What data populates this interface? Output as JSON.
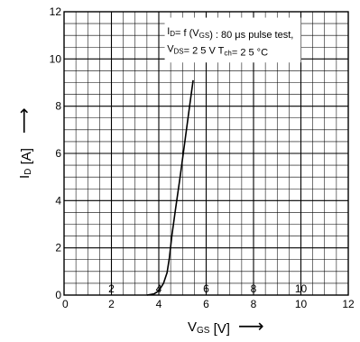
{
  "chart_data": {
    "type": "line",
    "title": "",
    "xlabel": {
      "main": "V",
      "sub": "GS",
      "unit": " [V]",
      "arrow": "⟶"
    },
    "ylabel": {
      "main": "I",
      "sub": "D",
      "unit": " [A]",
      "arrow": "⟶"
    },
    "xlim": [
      0,
      12
    ],
    "ylim": [
      0,
      12
    ],
    "x_ticks": [
      0,
      2,
      4,
      6,
      8,
      10,
      12
    ],
    "y_ticks": [
      0,
      2,
      4,
      6,
      8,
      10,
      12
    ],
    "x_ticks_upper": [
      2,
      4,
      6,
      8,
      10
    ],
    "minor_divisions_per_major": 4,
    "grid": true,
    "annotation": {
      "line1_segments": [
        {
          "text": "I",
          "role": "main"
        },
        {
          "text": "D",
          "role": "sub"
        },
        {
          "text": "= f (V",
          "role": "main"
        },
        {
          "text": "GS",
          "role": "sub"
        },
        {
          "text": ") : 80 μs pulse test,",
          "role": "main"
        }
      ],
      "line2_segments": [
        {
          "text": "V",
          "role": "main"
        },
        {
          "text": "DS",
          "role": "sub"
        },
        {
          "text": "= 2 5 V    T",
          "role": "main"
        },
        {
          "text": "ch",
          "role": "sub"
        },
        {
          "text": "= 2 5 °C",
          "role": "main"
        }
      ]
    },
    "series": [
      {
        "x": [
          3.5,
          3.8,
          4.0,
          4.2,
          4.35,
          4.45,
          4.55,
          4.7,
          4.9,
          5.1,
          5.3,
          5.45
        ],
        "y": [
          0.0,
          0.05,
          0.18,
          0.5,
          0.95,
          1.6,
          2.5,
          3.6,
          5.0,
          6.5,
          8.0,
          9.1
        ]
      }
    ]
  }
}
